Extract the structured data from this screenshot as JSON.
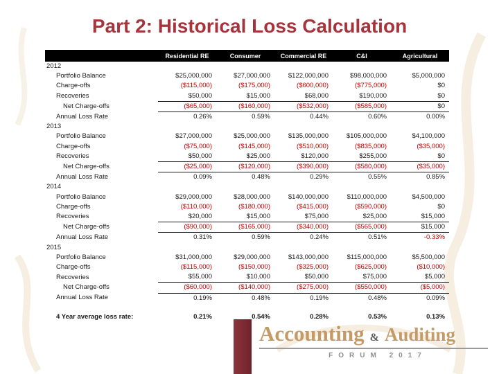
{
  "slide": {
    "title": "Part 2: Historical Loss Calculation"
  },
  "colors": {
    "accent": "#A6343C",
    "negative": "#C00000",
    "header_bg": "#000000",
    "header_text": "#FFFFFF",
    "logo_tan": "#C49A66",
    "ribbon": "#6E232B",
    "forum_gray": "#8F8F8F"
  },
  "table": {
    "columns": [
      "Residential RE",
      "Consumer",
      "Commercial RE",
      "C&I",
      "Agricultural"
    ],
    "years": [
      {
        "year": "2012",
        "rows": [
          {
            "label": "Portfolio Balance",
            "indent": 1,
            "rule": false,
            "values": [
              "$25,000,000",
              "$27,000,000",
              "$122,000,000",
              "$98,000,000",
              "$5,000,000"
            ]
          },
          {
            "label": "Charge-offs",
            "indent": 1,
            "rule": false,
            "values": [
              "($115,000)",
              "($175,000)",
              "($600,000)",
              "($775,000)",
              "$0"
            ]
          },
          {
            "label": "Recoveries",
            "indent": 1,
            "rule": false,
            "values": [
              "$50,000",
              "$15,000",
              "$68,000",
              "$190,000",
              "$0"
            ]
          },
          {
            "label": "Net Charge-offs",
            "indent": 2,
            "rule": true,
            "values": [
              "($65,000)",
              "($160,000)",
              "($532,000)",
              "($585,000)",
              "$0"
            ]
          },
          {
            "label": "Annual Loss Rate",
            "indent": 1,
            "rule": true,
            "values": [
              "0.26%",
              "0.59%",
              "0.44%",
              "0.60%",
              "0.00%"
            ]
          }
        ]
      },
      {
        "year": "2013",
        "rows": [
          {
            "label": "Portfolio Balance",
            "indent": 1,
            "rule": false,
            "values": [
              "$27,000,000",
              "$25,000,000",
              "$135,000,000",
              "$105,000,000",
              "$4,100,000"
            ]
          },
          {
            "label": "Charge-offs",
            "indent": 1,
            "rule": false,
            "values": [
              "($75,000)",
              "($145,000)",
              "($510,000)",
              "($835,000)",
              "($35,000)"
            ]
          },
          {
            "label": "Recoveries",
            "indent": 1,
            "rule": false,
            "values": [
              "$50,000",
              "$25,000",
              "$120,000",
              "$255,000",
              "$0"
            ]
          },
          {
            "label": "Net Charge-offs",
            "indent": 2,
            "rule": true,
            "values": [
              "($25,000)",
              "($120,000)",
              "($390,000)",
              "($580,000)",
              "($35,000)"
            ]
          },
          {
            "label": "Annual Loss Rate",
            "indent": 1,
            "rule": true,
            "values": [
              "0.09%",
              "0.48%",
              "0.29%",
              "0.55%",
              "0.85%"
            ]
          }
        ]
      },
      {
        "year": "2014",
        "rows": [
          {
            "label": "Portfolio Balance",
            "indent": 1,
            "rule": false,
            "values": [
              "$29,000,000",
              "$28,000,000",
              "$140,000,000",
              "$110,000,000",
              "$4,500,000"
            ]
          },
          {
            "label": "Charge-offs",
            "indent": 1,
            "rule": false,
            "values": [
              "($110,000)",
              "($180,000)",
              "($415,000)",
              "($590,000)",
              "$0"
            ]
          },
          {
            "label": "Recoveries",
            "indent": 1,
            "rule": false,
            "values": [
              "$20,000",
              "$15,000",
              "$75,000",
              "$25,000",
              "$15,000"
            ]
          },
          {
            "label": "Net Charge-offs",
            "indent": 2,
            "rule": true,
            "values": [
              "($90,000)",
              "($165,000)",
              "($340,000)",
              "($565,000)",
              "$15,000"
            ]
          },
          {
            "label": "Annual Loss Rate",
            "indent": 1,
            "rule": true,
            "values": [
              "0.31%",
              "0.59%",
              "0.24%",
              "0.51%",
              "-0.33%"
            ]
          }
        ]
      },
      {
        "year": "2015",
        "rows": [
          {
            "label": "Portfolio Balance",
            "indent": 1,
            "rule": false,
            "values": [
              "$31,000,000",
              "$29,000,000",
              "$143,000,000",
              "$115,000,000",
              "$5,500,000"
            ]
          },
          {
            "label": "Charge-offs",
            "indent": 1,
            "rule": false,
            "values": [
              "($115,000)",
              "($150,000)",
              "($325,000)",
              "($625,000)",
              "($10,000)"
            ]
          },
          {
            "label": "Recoveries",
            "indent": 1,
            "rule": false,
            "values": [
              "$55,000",
              "$10,000",
              "$50,000",
              "$75,000",
              "$5,000"
            ]
          },
          {
            "label": "Net Charge-offs",
            "indent": 2,
            "rule": true,
            "values": [
              "($60,000)",
              "($140,000)",
              "($275,000)",
              "($550,000)",
              "($5,000)"
            ]
          },
          {
            "label": "Annual Loss Rate",
            "indent": 1,
            "rule": true,
            "values": [
              "0.19%",
              "0.48%",
              "0.19%",
              "0.48%",
              "0.09%"
            ]
          }
        ]
      }
    ],
    "average": {
      "label": "4 Year average loss rate:",
      "indent": 1,
      "rule": false,
      "values": [
        "0.21%",
        "0.54%",
        "0.28%",
        "0.53%",
        "0.13%"
      ]
    }
  },
  "footer": {
    "brand_word1": "Accounting",
    "brand_amp": "&",
    "brand_word2": "Auditing",
    "forum_line": "FORUM 2017"
  }
}
